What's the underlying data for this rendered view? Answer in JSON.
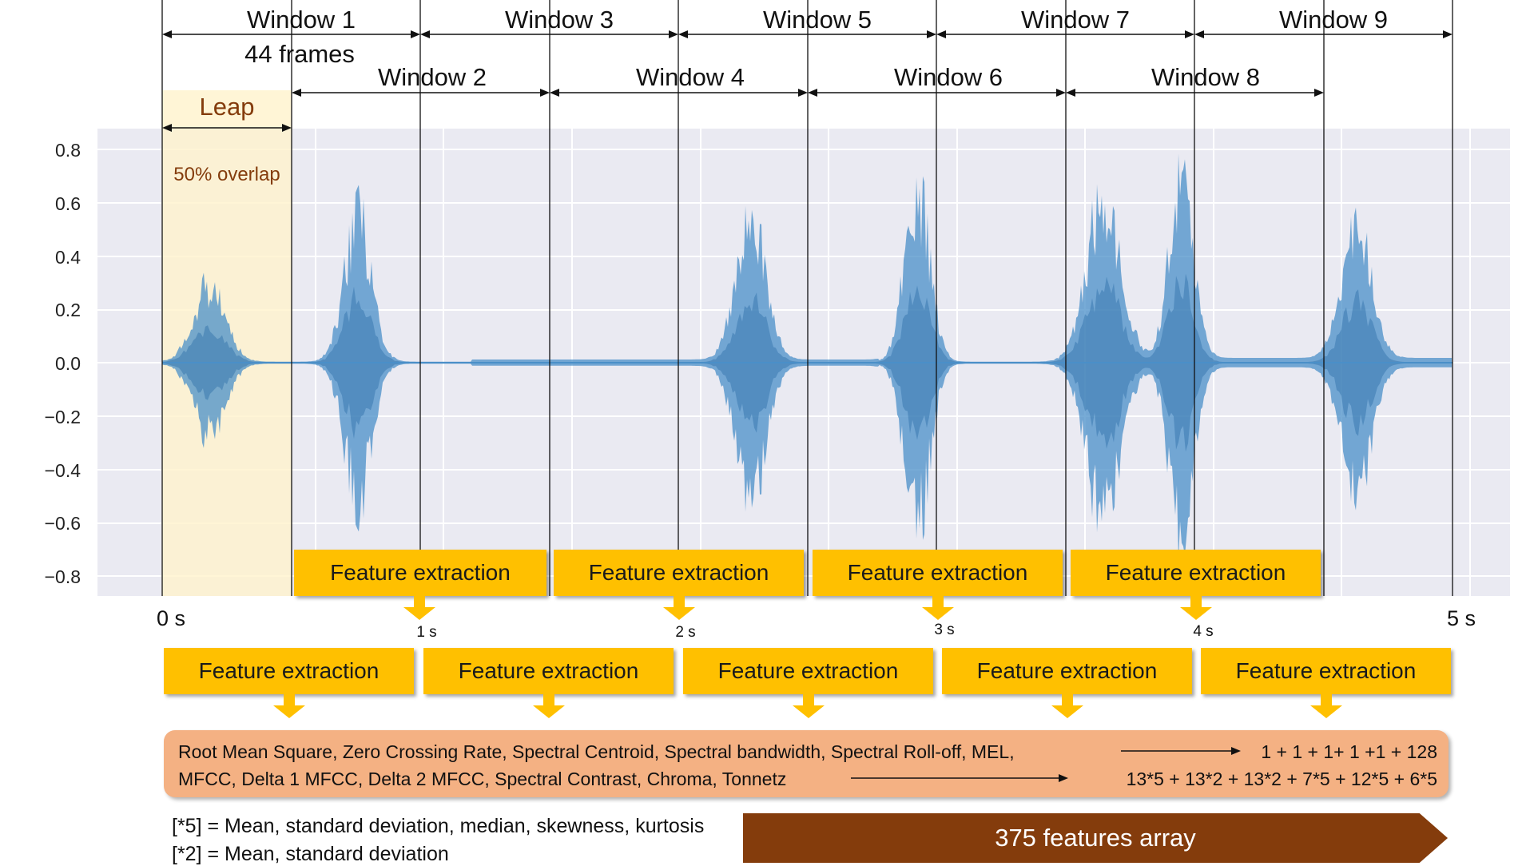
{
  "windows_top": [
    "Window 1",
    "Window 3",
    "Window 5",
    "Window 7",
    "Window 9"
  ],
  "windows_bottom": [
    "Window 2",
    "Window 4",
    "Window 6",
    "Window 8"
  ],
  "frames_label": "44 frames",
  "leap_label": "Leap",
  "overlap_label": "50% overlap",
  "y_ticks": [
    "0.8",
    "0.6",
    "0.4",
    "0.2",
    "0.0",
    "−0.2",
    "−0.4",
    "−0.6",
    "−0.8"
  ],
  "time_labels": [
    "0 s",
    "1 s",
    "2 s",
    "3 s",
    "4 s",
    "5 s"
  ],
  "feature_extraction_label": "Feature extraction",
  "features": {
    "line1": "Root Mean Square, Zero Crossing Rate, Spectral Centroid, Spectral bandwidth, Spectral Roll-off, MEL,",
    "line1_counts": "1 + 1 + 1+ 1 +1 + 128",
    "line2": "MFCC, Delta 1 MFCC, Delta 2 MFCC, Spectral Contrast, Chroma, Tonnetz",
    "line2_counts": "13*5 + 13*2 + 13*2 + 7*5 + 12*5 + 6*5"
  },
  "legend": {
    "line1": "[*5] = Mean, standard deviation, median, skewness, kurtosis",
    "line2": "[*2] = Mean, standard deviation"
  },
  "result_label": "375 features array",
  "colors": {
    "plot_bg": "#EAEAF2",
    "waveform": "#4A8FC8",
    "leap_fill": "#FFF2CC",
    "leap_text": "#843C0C",
    "box": "#FFC000",
    "panel": "#F4B183",
    "result": "#843C0C"
  }
}
